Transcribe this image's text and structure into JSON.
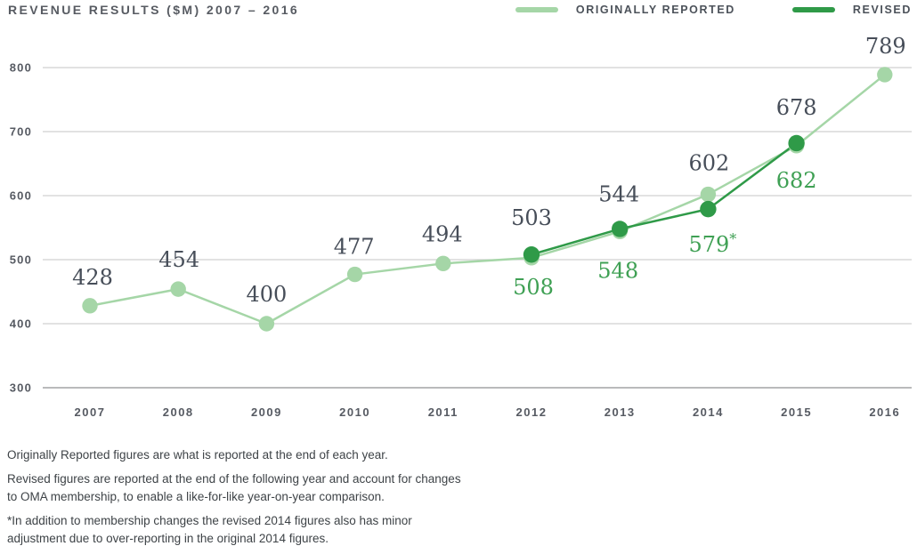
{
  "header": {
    "title": "REVENUE RESULTS ($M) 2007 – 2016"
  },
  "colors": {
    "originally_reported": "#a5d6a7",
    "revised": "#2f9a48",
    "original_label": "#474e59",
    "revised_label": "#3fa054",
    "axis_text": "#565a62",
    "gridline": "#d0d0d1",
    "baseline": "#b9babb",
    "footnote_text": "#3e4347"
  },
  "chart_data": {
    "type": "line",
    "title": "REVENUE RESULTS ($M) 2007 – 2016",
    "categories": [
      "2007",
      "2008",
      "2009",
      "2010",
      "2011",
      "2012",
      "2013",
      "2014",
      "2015",
      "2016"
    ],
    "series": [
      {
        "name": "ORIGINALLY REPORTED",
        "color": "#a5d6a7",
        "label_color": "#474e59",
        "values": [
          428,
          454,
          400,
          477,
          494,
          503,
          544,
          602,
          678,
          789
        ],
        "point_labels": [
          "428",
          "454",
          "400",
          "477",
          "494",
          "503",
          "544",
          "602",
          "678",
          "789"
        ],
        "label_offsets": [
          [
            3,
            -32
          ],
          [
            1,
            -33
          ],
          [
            0,
            -33
          ],
          [
            -1,
            -31
          ],
          [
            -1,
            -33
          ],
          [
            0,
            -45
          ],
          [
            -1,
            -42
          ],
          [
            1,
            -35
          ],
          [
            0,
            -43
          ],
          [
            1,
            -32
          ]
        ]
      },
      {
        "name": "REVISED",
        "color": "#2f9a48",
        "label_color": "#3fa054",
        "values": [
          null,
          null,
          null,
          null,
          null,
          508,
          548,
          579,
          682,
          null
        ],
        "point_labels": [
          null,
          null,
          null,
          null,
          null,
          "508",
          "548",
          "579*",
          "682",
          null
        ],
        "label_offsets": [
          null,
          null,
          null,
          null,
          null,
          [
            2,
            37
          ],
          [
            -2,
            47
          ],
          [
            5,
            40
          ],
          [
            0,
            42
          ],
          null
        ]
      }
    ],
    "ylim": [
      300,
      800
    ],
    "yticks": [
      300,
      400,
      500,
      600,
      700,
      800
    ],
    "grid": "horizontal",
    "legend_position": "top-right"
  },
  "footnotes": [
    "Originally Reported figures are what is reported at the end of each year.",
    "Revised figures are reported at the end of the following year and account for changes\nto OMA membership, to enable a like-for-like year-on-year comparison.",
    "*In addition to membership changes the revised 2014 figures also has minor\nadjustment due to over-reporting in the original 2014 figures."
  ]
}
